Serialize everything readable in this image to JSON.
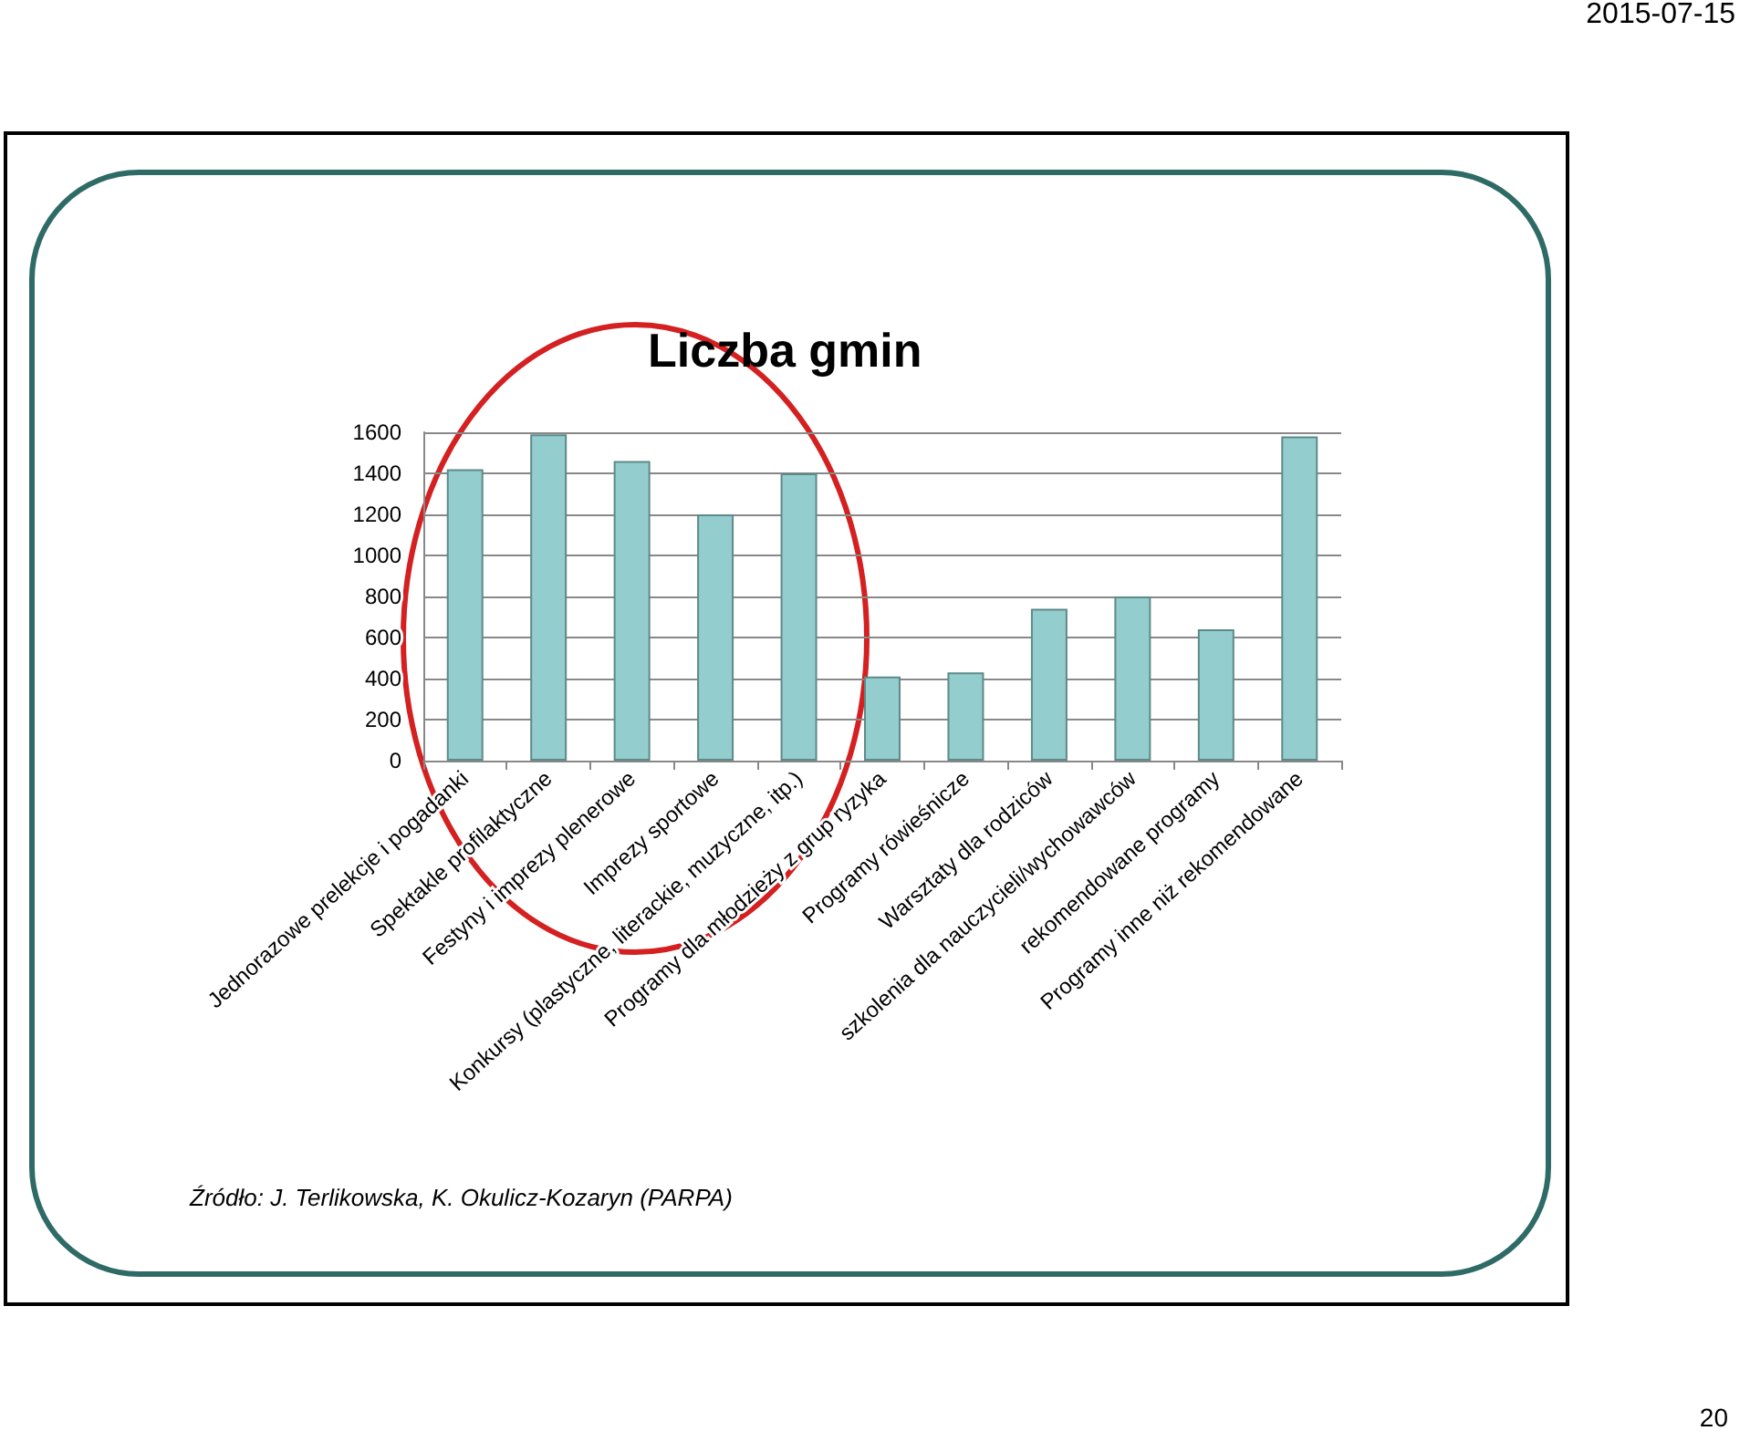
{
  "chart_data": {
    "type": "bar",
    "title": "Liczba gmin",
    "categories": [
      "Jednorazowe prelekcje i pogadanki",
      "Spektakle profilaktyczne",
      "Festyny i imprezy plenerowe",
      "Imprezy sportowe",
      "Konkursy (plastyczne, literackie, muzyczne, itp.)",
      "Programy dla młodzieży z grup ryzyka",
      "Programy rówieśnicze",
      "Warsztaty dla rodziców",
      "szkolenia dla nauczycieli/wychowawców",
      "rekomendowane programy",
      "Programy inne niż rekomendowane"
    ],
    "values": [
      1420,
      1590,
      1460,
      1200,
      1400,
      410,
      430,
      740,
      800,
      640,
      1580
    ],
    "color": "#93cdcd",
    "ylim": [
      0,
      1600
    ],
    "yticks": [
      0,
      200,
      400,
      600,
      800,
      1000,
      1200,
      1400,
      1600
    ],
    "grid": "y",
    "annotations": [
      "Źródło: J. Terlikowska, K. Okulicz-Kozaryn (PARPA)",
      "2015-07-15",
      "20"
    ]
  }
}
